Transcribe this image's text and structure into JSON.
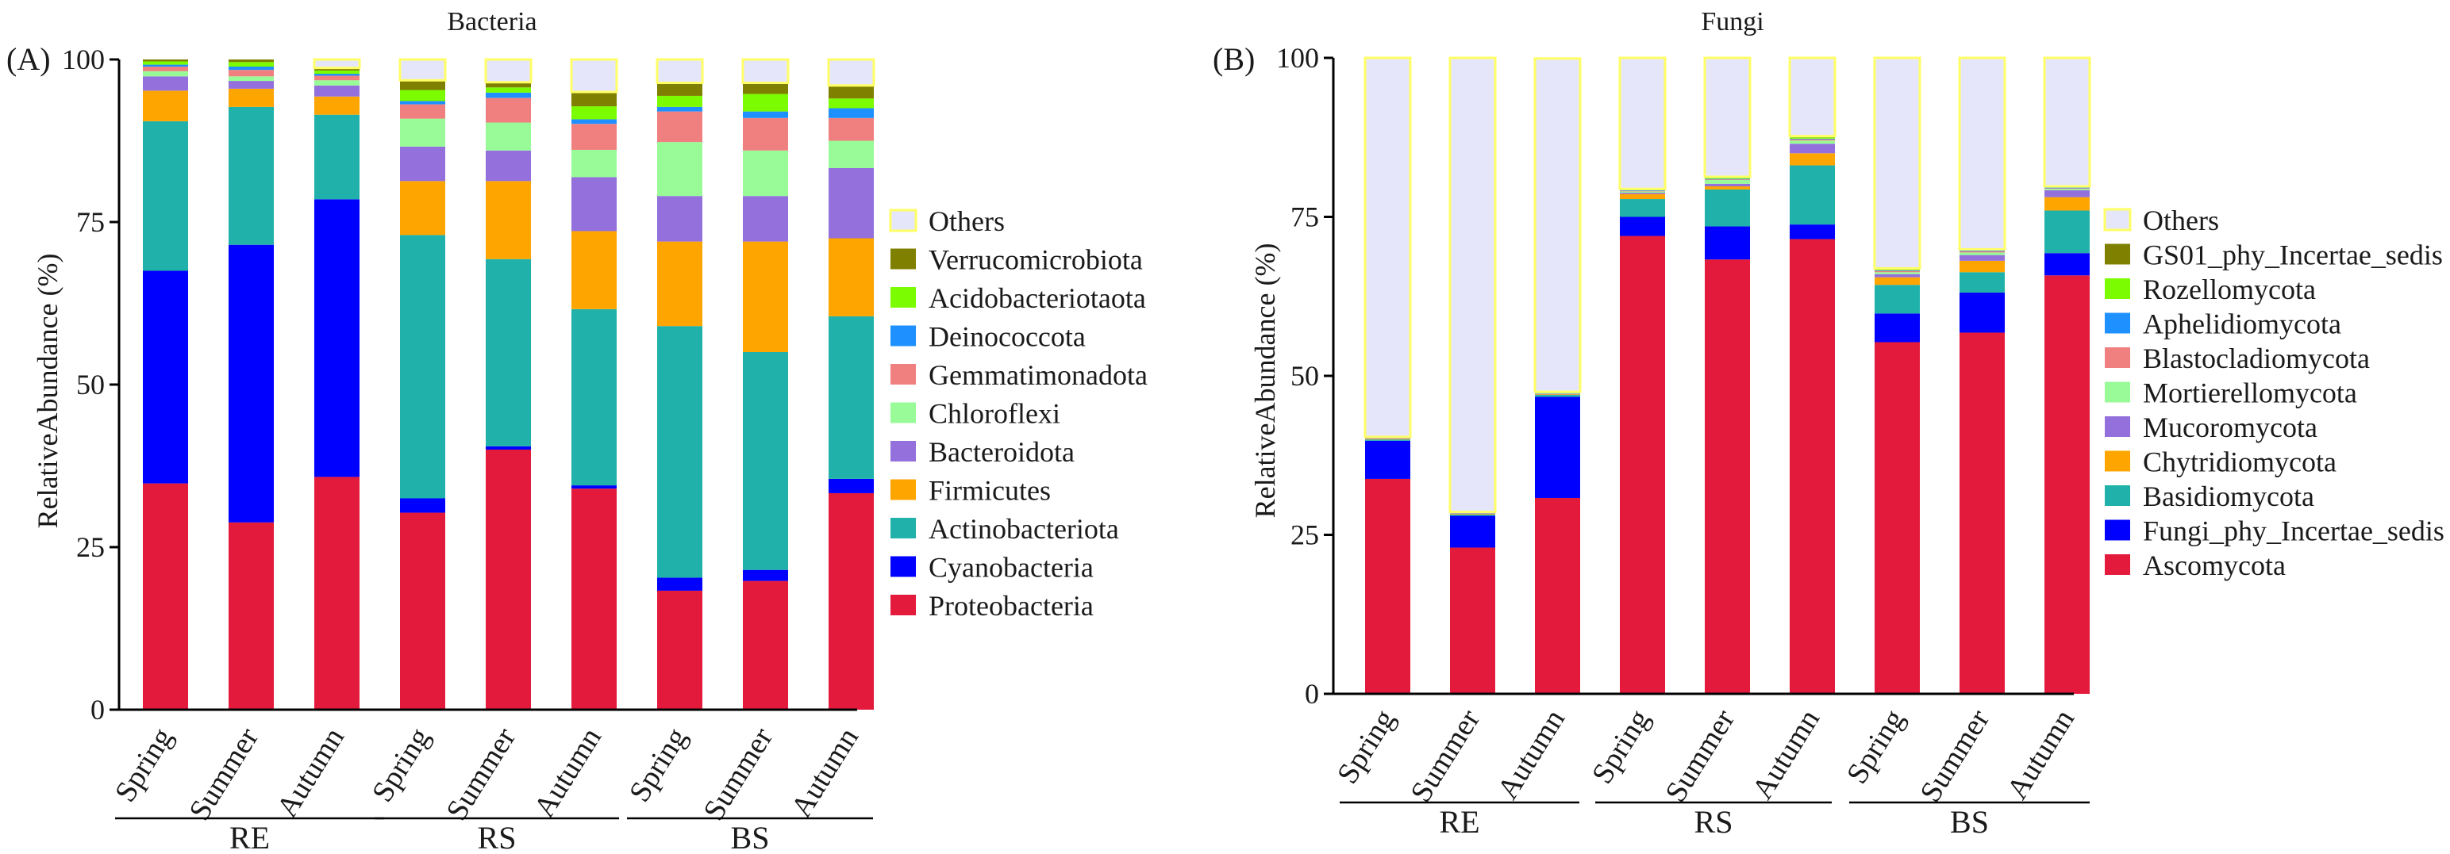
{
  "chart_data": [
    {
      "type": "bar",
      "stacked": true,
      "panel_label": "(A)",
      "title": "Bacteria",
      "ylabel": "RelativeAbundance (%)",
      "ylim": [
        0,
        100
      ],
      "yticks": [
        "0",
        "25",
        "50",
        "75",
        "100"
      ],
      "categories": [
        "Spring",
        "Summer",
        "Autumn",
        "Spring",
        "Summer",
        "Autumn",
        "Spring",
        "Summer",
        "Autumn"
      ],
      "groups": [
        {
          "label": "RE",
          "indices": [
            0,
            1,
            2
          ]
        },
        {
          "label": "RS",
          "indices": [
            3,
            4,
            5
          ]
        },
        {
          "label": "BS",
          "indices": [
            6,
            7,
            8
          ]
        }
      ],
      "series": [
        {
          "name": "Proteobacteria",
          "color": "#e31a3c",
          "values": [
            34.8,
            28.8,
            35.8,
            30.3,
            40.0,
            34.0,
            18.3,
            19.8,
            33.3
          ]
        },
        {
          "name": "Cyanobacteria",
          "color": "#0000ff",
          "values": [
            32.7,
            42.7,
            42.7,
            2.2,
            0.5,
            0.5,
            2.0,
            1.7,
            2.2
          ]
        },
        {
          "name": "Actinobacteriota",
          "color": "#20b2aa",
          "values": [
            23.0,
            21.2,
            13.0,
            40.5,
            28.8,
            27.1,
            38.7,
            33.5,
            25.0
          ]
        },
        {
          "name": "Firmicutes",
          "color": "#ffa500",
          "values": [
            4.7,
            2.8,
            2.8,
            8.3,
            12.0,
            12.0,
            13.0,
            17.0,
            12.0
          ]
        },
        {
          "name": "Bacteroidota",
          "color": "#9370db",
          "values": [
            2.2,
            1.2,
            1.7,
            5.3,
            4.7,
            8.3,
            7.0,
            7.0,
            10.8
          ]
        },
        {
          "name": "Chloroflexi",
          "color": "#98fb98",
          "values": [
            0.8,
            0.7,
            0.8,
            4.3,
            4.3,
            4.2,
            8.3,
            7.0,
            4.2
          ]
        },
        {
          "name": "Gemmatimonadota",
          "color": "#f08080",
          "values": [
            0.7,
            1.0,
            0.7,
            2.2,
            3.8,
            4.0,
            4.7,
            5.0,
            3.5
          ]
        },
        {
          "name": "Deinococcota",
          "color": "#1e90ff",
          "values": [
            0.3,
            0.5,
            0.3,
            0.5,
            0.8,
            0.7,
            0.7,
            1.0,
            1.5
          ]
        },
        {
          "name": "Acidobacteriotaota",
          "color": "#7cfc00",
          "values": [
            0.5,
            0.7,
            0.5,
            1.7,
            0.8,
            2.0,
            1.7,
            2.7,
            1.5
          ]
        },
        {
          "name": "Verrucomicrobiota",
          "color": "#808000",
          "values": [
            0.3,
            0.4,
            0.4,
            1.5,
            0.8,
            2.2,
            2.0,
            1.7,
            2.0
          ]
        },
        {
          "name": "Others",
          "color": "#e6e6fa",
          "values": [
            0.0,
            0.0,
            1.3,
            3.2,
            3.5,
            5.0,
            3.6,
            3.6,
            4.0
          ]
        }
      ]
    },
    {
      "type": "bar",
      "stacked": true,
      "panel_label": "(B)",
      "title": "Fungi",
      "ylabel": "RelativeAbundance (%)",
      "ylim": [
        0,
        100
      ],
      "yticks": [
        "0",
        "25",
        "50",
        "75",
        "100"
      ],
      "categories": [
        "Spring",
        "Summer",
        "Autumn",
        "Spring",
        "Summer",
        "Autumn",
        "Spring",
        "Summer",
        "Autumn"
      ],
      "groups": [
        {
          "label": "RE",
          "indices": [
            0,
            1,
            2
          ]
        },
        {
          "label": "RS",
          "indices": [
            3,
            4,
            5
          ]
        },
        {
          "label": "BS",
          "indices": [
            6,
            7,
            8
          ]
        }
      ],
      "series": [
        {
          "name": "Ascomycota",
          "color": "#e31a3c",
          "values": [
            33.8,
            23.0,
            30.8,
            72.0,
            68.3,
            71.5,
            55.3,
            56.8,
            65.8
          ]
        },
        {
          "name": "Fungi_phy_Incertae_sedis",
          "color": "#0000ff",
          "values": [
            6.0,
            5.0,
            15.9,
            3.0,
            5.2,
            2.3,
            4.5,
            6.3,
            3.5
          ]
        },
        {
          "name": "Basidiomycota",
          "color": "#20b2aa",
          "values": [
            0.2,
            0.2,
            0.3,
            2.8,
            5.8,
            9.3,
            4.5,
            3.2,
            6.7
          ]
        },
        {
          "name": "Chytridiomycota",
          "color": "#ffa500",
          "values": [
            0.1,
            0.1,
            0.1,
            0.8,
            0.5,
            1.9,
            1.2,
            1.8,
            2.1
          ]
        },
        {
          "name": "Mucoromycota",
          "color": "#9370db",
          "values": [
            0.1,
            0.1,
            0.1,
            0.2,
            0.4,
            1.5,
            0.5,
            0.9,
            1.1
          ]
        },
        {
          "name": "Mortierellomycota",
          "color": "#98fb98",
          "values": [
            0.1,
            0.1,
            0.1,
            0.2,
            0.6,
            0.5,
            0.3,
            0.4,
            0.2
          ]
        },
        {
          "name": "Blastocladiomycota",
          "color": "#f08080",
          "values": [
            0.0,
            0.0,
            0.0,
            0.1,
            0.1,
            0.2,
            0.2,
            0.2,
            0.1
          ]
        },
        {
          "name": "Aphelidiomycota",
          "color": "#1e90ff",
          "values": [
            0.0,
            0.0,
            0.0,
            0.1,
            0.1,
            0.1,
            0.1,
            0.1,
            0.1
          ]
        },
        {
          "name": "Rozellomycota",
          "color": "#7cfc00",
          "values": [
            0.0,
            0.0,
            0.1,
            0.1,
            0.2,
            0.2,
            0.1,
            0.1,
            0.1
          ]
        },
        {
          "name": "GS01_phy_Incertae_sedis",
          "color": "#808000",
          "values": [
            0.1,
            0.1,
            0.1,
            0.1,
            0.1,
            0.2,
            0.2,
            0.1,
            0.1
          ]
        },
        {
          "name": "Others",
          "color": "#e6e6fa",
          "values": [
            59.6,
            71.4,
            52.4,
            20.6,
            18.7,
            12.3,
            33.1,
            30.1,
            20.2
          ]
        }
      ]
    }
  ]
}
